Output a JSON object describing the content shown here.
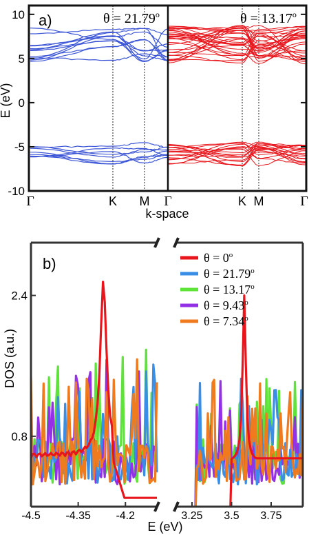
{
  "chart_data": [
    {
      "panel_label": "a)",
      "type": "line",
      "title": "",
      "xlabel": "k-space",
      "ylabel": "E (eV)",
      "ylim": [
        -10,
        11
      ],
      "yticks": [
        -10,
        -5,
        0,
        5,
        10
      ],
      "x_ticks": [
        "Γ",
        "K",
        "M",
        "Γ"
      ],
      "grid": false,
      "subpanels": [
        {
          "label": "θ = 21.79",
          "label_sup": "o",
          "color": "#3b55d6",
          "symmetry_points": [
            0,
            0.6,
            0.83,
            1.0
          ],
          "conduction_band_range": [
            4.6,
            8.6
          ],
          "valence_band_range": [
            -7.0,
            -4.5
          ]
        },
        {
          "label": "θ = 13.17",
          "label_sup": "o",
          "color": "#e8161c",
          "symmetry_points": [
            0,
            0.54,
            0.66,
            1.0
          ],
          "conduction_band_range": [
            4.4,
            8.8
          ],
          "valence_band_range": [
            -7.2,
            -4.4
          ]
        }
      ]
    },
    {
      "panel_label": "b)",
      "type": "line",
      "title": "",
      "xlabel": "E (eV)",
      "ylabel": "DOS (a.u.)",
      "yticks": [
        0.8,
        2.4
      ],
      "ylim": [
        0,
        3.0
      ],
      "x_ranges": [
        [
          -4.5,
          -4.1
        ],
        [
          3.15,
          3.95
        ]
      ],
      "xticks_left": [
        -4.5,
        -4.35,
        -4.2
      ],
      "xticks_right": [
        3.25,
        3.5,
        3.75
      ],
      "axis_break": true,
      "legend_position": "top-right",
      "series": [
        {
          "name": "θ = 0",
          "sup": "o",
          "color": "#e8161c",
          "peaks": [
            -4.27,
            3.58
          ],
          "peak_heights": [
            2.65,
            2.35
          ]
        },
        {
          "name": "θ = 21.79",
          "sup": "o",
          "color": "#3a8ee6"
        },
        {
          "name": "θ = 13.17",
          "sup": "o",
          "color": "#5ee33a"
        },
        {
          "name": "θ = 9.43",
          "sup": "o",
          "color": "#9430e6"
        },
        {
          "name": "θ = 7.34",
          "sup": "o",
          "color": "#f07a1e"
        }
      ]
    }
  ]
}
